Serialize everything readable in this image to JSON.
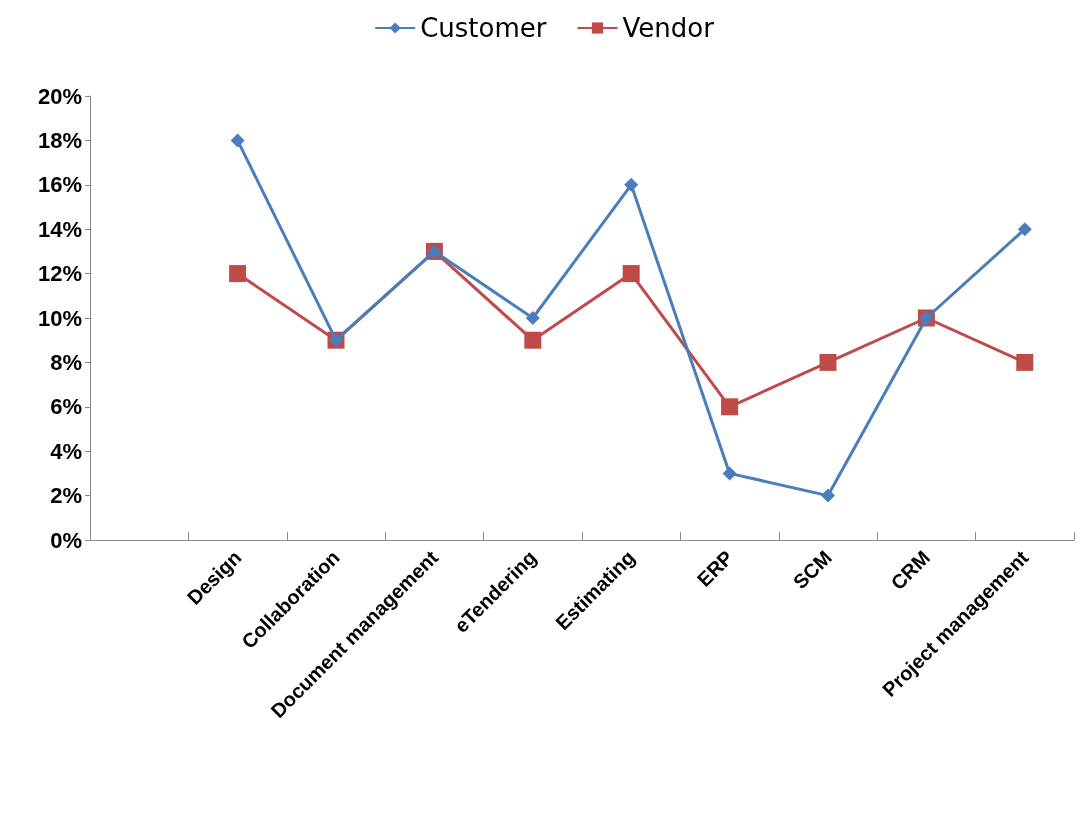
{
  "chart_data": {
    "type": "line",
    "categories": [
      null,
      "Design",
      "Collaboration",
      "Document management",
      "eTendering",
      "Estimating",
      "ERP",
      "SCM",
      "CRM",
      "Project management"
    ],
    "series": [
      {
        "name": "Customer",
        "color": "#4a7ebb",
        "marker": "diamond",
        "values": [
          null,
          18,
          9,
          13,
          10,
          16,
          3,
          2,
          10,
          14
        ]
      },
      {
        "name": "Vendor",
        "color": "#be4b48",
        "marker": "square",
        "values": [
          null,
          12,
          9,
          13,
          9,
          12,
          6,
          8,
          10,
          8
        ]
      }
    ],
    "ylim": [
      0,
      20
    ],
    "yticks": [
      {
        "value": 0,
        "label": "0%"
      },
      {
        "value": 2,
        "label": "2%"
      },
      {
        "value": 4,
        "label": "4%"
      },
      {
        "value": 6,
        "label": "6%"
      },
      {
        "value": 8,
        "label": "8%"
      },
      {
        "value": 10,
        "label": "10%"
      },
      {
        "value": 12,
        "label": "12%"
      },
      {
        "value": 14,
        "label": "14%"
      },
      {
        "value": 16,
        "label": "16%"
      },
      {
        "value": 18,
        "label": "18%"
      },
      {
        "value": 20,
        "label": "20%"
      }
    ],
    "grid": false,
    "legend": "top",
    "line_style": "solid"
  }
}
